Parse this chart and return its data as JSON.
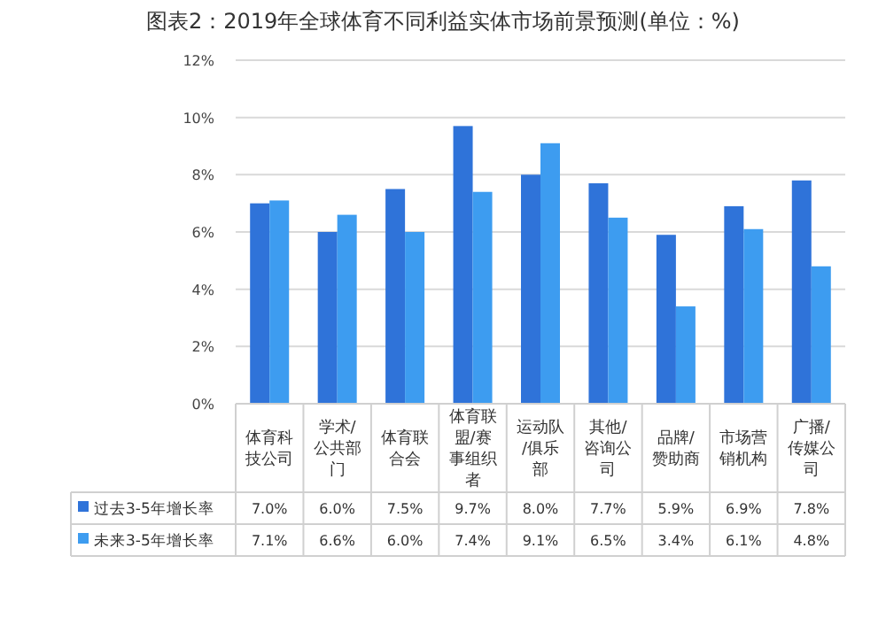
{
  "chart_data": {
    "type": "bar",
    "title": "图表2：2019年全球体育不同利益实体市场前景预测(单位：%)",
    "categories": [
      "体育科技公司",
      "学术/公共部门",
      "体育联合会",
      "体育联盟/赛事组织者",
      "运动队/俱乐部",
      "其他/咨询公司",
      "品牌/赞助商",
      "市场营销机构",
      "广播/传媒公司"
    ],
    "series": [
      {
        "name": "过去3-5年增长率",
        "color": "#2f73d9",
        "values": [
          7.0,
          6.0,
          7.5,
          9.7,
          8.0,
          7.7,
          5.9,
          6.9,
          7.8
        ],
        "value_labels": [
          "7.0%",
          "6.0%",
          "7.5%",
          "9.7%",
          "8.0%",
          "7.7%",
          "5.9%",
          "6.9%",
          "7.8%"
        ]
      },
      {
        "name": "未来3-5年增长率",
        "color": "#3d9cf0",
        "values": [
          7.1,
          6.6,
          6.0,
          7.4,
          9.1,
          6.5,
          3.4,
          6.1,
          4.8
        ],
        "value_labels": [
          "7.1%",
          "6.6%",
          "6.0%",
          "7.4%",
          "9.1%",
          "6.5%",
          "3.4%",
          "6.1%",
          "4.8%"
        ]
      }
    ],
    "ylim": [
      0,
      12
    ],
    "yticks": [
      {
        "value": 0,
        "label": "0%"
      },
      {
        "value": 2,
        "label": "2%"
      },
      {
        "value": 4,
        "label": "4%"
      },
      {
        "value": 6,
        "label": "6%"
      },
      {
        "value": 8,
        "label": "8%"
      },
      {
        "value": 10,
        "label": "10%"
      },
      {
        "value": 12,
        "label": "12%"
      }
    ],
    "grid": "y",
    "legend": "bottom"
  }
}
